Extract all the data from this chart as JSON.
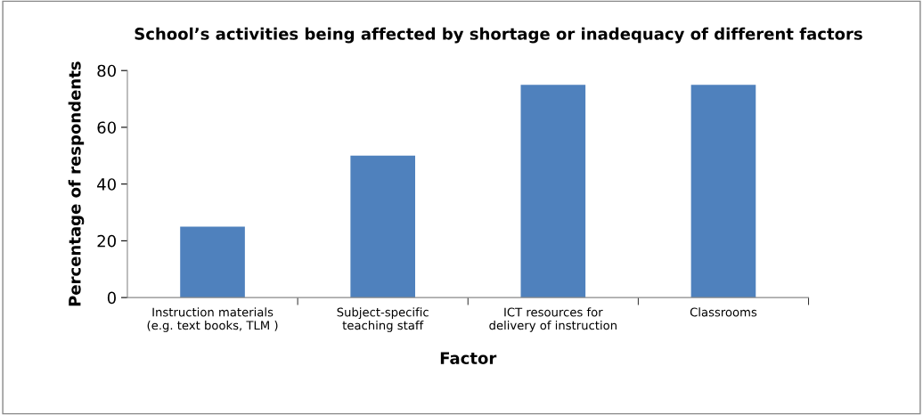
{
  "chart_data": {
    "type": "bar",
    "title": "School’s activities being affected by shortage or inadequacy of different factors",
    "xlabel": "Factor",
    "ylabel": "Percentage of respondents",
    "categories": [
      "Instruction materials\n(e.g. text books, TLM )",
      "Subject-specific\nteaching staff",
      "ICT resources for\ndelivery of instruction",
      "Classrooms"
    ],
    "values": [
      25,
      50,
      75,
      75
    ],
    "color": "#4f81bd",
    "ylim": [
      0,
      80
    ],
    "yticks": [
      0,
      20,
      40,
      60,
      80
    ],
    "grid": false
  }
}
